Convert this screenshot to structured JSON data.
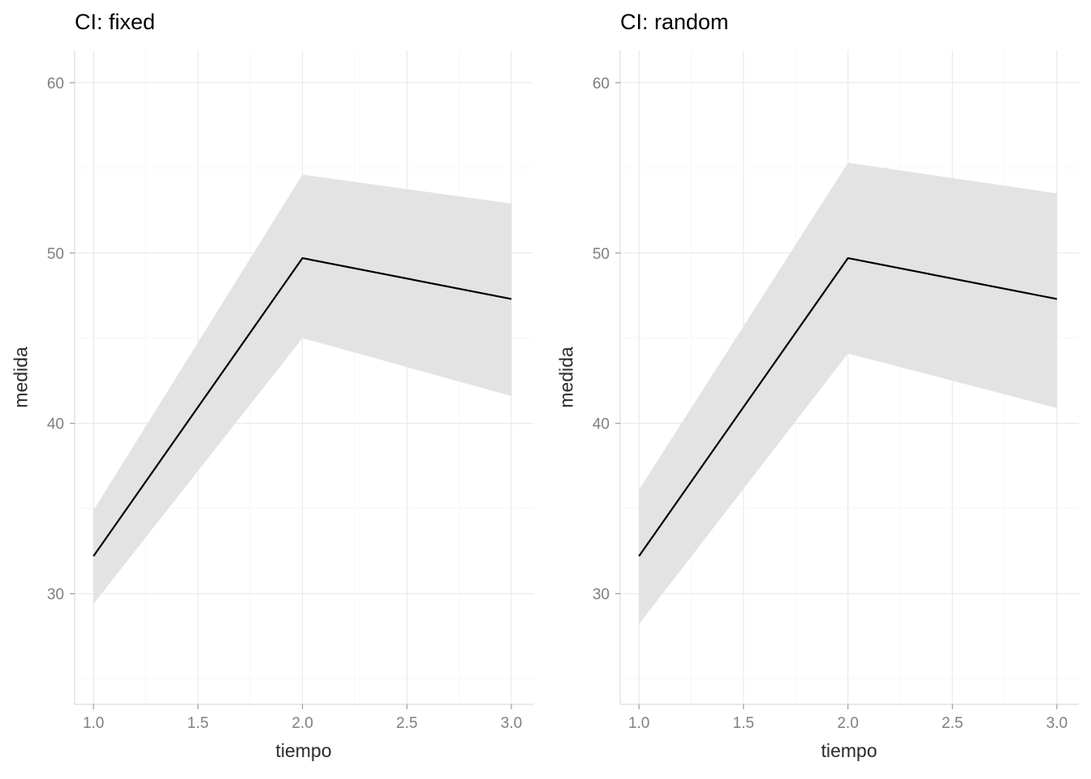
{
  "figure": {
    "background": "#ffffff",
    "panel_count": 2
  },
  "chart_data": [
    {
      "type": "line",
      "title": "CI: fixed",
      "xlabel": "tiempo",
      "ylabel": "medida",
      "x": [
        1,
        2,
        3
      ],
      "y": [
        32.2,
        49.7,
        47.3
      ],
      "ci_lower": [
        29.4,
        45.0,
        41.6
      ],
      "ci_upper": [
        34.9,
        54.6,
        52.9
      ],
      "legend_position": "none"
    },
    {
      "type": "line",
      "title": "CI: random",
      "xlabel": "tiempo",
      "ylabel": "medida",
      "x": [
        1,
        2,
        3
      ],
      "y": [
        32.2,
        49.7,
        47.3
      ],
      "ci_lower": [
        28.2,
        44.1,
        40.9
      ],
      "ci_upper": [
        36.1,
        55.3,
        53.5
      ],
      "legend_position": "none"
    }
  ],
  "axes": {
    "xlim": [
      0.91,
      3.105
    ],
    "ylim": [
      23.5,
      61.9
    ],
    "x_major_ticks": [
      1.0,
      1.5,
      2.0,
      2.5,
      3.0
    ],
    "x_tick_labels": [
      "1.0",
      "1.5",
      "2.0",
      "2.5",
      "3.0"
    ],
    "x_minor_ticks": [
      1.25,
      1.75,
      2.25,
      2.75
    ],
    "y_major_ticks": [
      30,
      40,
      50,
      60
    ],
    "y_tick_labels": [
      "30",
      "40",
      "50",
      "60"
    ],
    "y_minor_ticks": [
      25,
      35,
      45,
      55
    ],
    "grid": true
  },
  "style": {
    "line_color": "#000000",
    "ribbon_color": "#e3e3e3",
    "grid_major_color": "#ebebeb",
    "grid_minor_color": "#f6f6f6",
    "axis_line_color": "#dcdcdc",
    "tick_color": "#9a9a9a",
    "tick_label_color": "#7f7f7f",
    "axis_title_color": "#2b2b2b",
    "title_color": "#000000",
    "background_color": "#ffffff"
  }
}
